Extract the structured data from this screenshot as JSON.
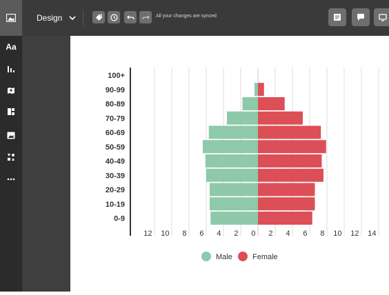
{
  "toolbar": {
    "design_label": "Design",
    "sync_status": "All your changes are synced"
  },
  "sidebar": {
    "items": [
      {
        "icon": "text-icon",
        "label": "Aa"
      },
      {
        "icon": "chart-icon"
      },
      {
        "icon": "map-icon"
      },
      {
        "icon": "layout-icon"
      },
      {
        "icon": "image-icon"
      },
      {
        "icon": "shapes-icon"
      },
      {
        "icon": "more-icon"
      }
    ]
  },
  "colors": {
    "male": "#8ec9a9",
    "female": "#dc4f56",
    "topbar": "#3a3a3a",
    "sidebar": "#2b2b2b"
  },
  "chart_data": {
    "type": "bar",
    "subtype": "population-pyramid",
    "categories": [
      "100+",
      "90-99",
      "80-89",
      "70-79",
      "60-69",
      "50-59",
      "40-49",
      "30-39",
      "20-29",
      "10-19",
      "0-9"
    ],
    "series": [
      {
        "name": "Male",
        "values": [
          0,
          0.4,
          1.8,
          3.6,
          5.7,
          6.4,
          6.1,
          6.0,
          5.6,
          5.6,
          5.5
        ]
      },
      {
        "name": "Female",
        "values": [
          0,
          0.7,
          3.1,
          5.2,
          7.3,
          7.9,
          7.4,
          7.6,
          6.6,
          6.6,
          6.3
        ]
      }
    ],
    "x_ticks": [
      "12",
      "10",
      "8",
      "6",
      "4",
      "2",
      "0",
      "2",
      "4",
      "6",
      "8",
      "10",
      "12",
      "14"
    ],
    "xlim": [
      -14,
      16
    ],
    "grid": true,
    "legend": "bottom"
  }
}
